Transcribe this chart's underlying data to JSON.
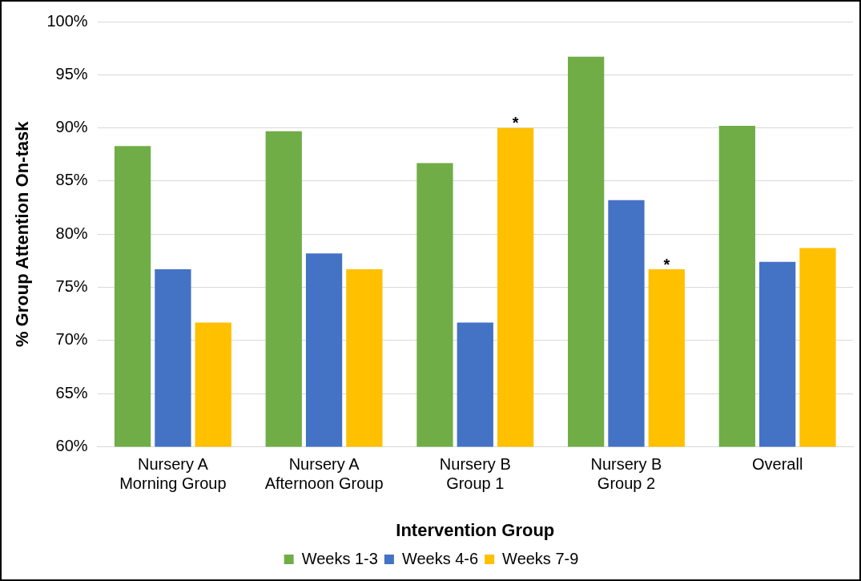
{
  "chart_data": {
    "type": "bar",
    "xlabel": "Intervention Group",
    "ylabel": "% Group Attention On-task",
    "categories": [
      "Nursery A\nMorning Group",
      "Nursery A\nAfternoon Group",
      "Nursery B\nGroup 1",
      "Nursery B\nGroup 2",
      "Overall"
    ],
    "series": [
      {
        "name": "Weeks 1-3",
        "color": "#70ad47",
        "values": [
          88.3,
          89.7,
          86.7,
          96.7,
          90.2
        ]
      },
      {
        "name": "Weeks 4-6",
        "color": "#4472c4",
        "values": [
          76.7,
          78.2,
          71.7,
          83.2,
          77.4
        ]
      },
      {
        "name": "Weeks 7-9",
        "color": "#ffc000",
        "values": [
          71.7,
          76.7,
          90.0,
          76.7,
          78.7
        ],
        "value_labels": [
          null,
          null,
          "*",
          "*",
          null
        ]
      }
    ],
    "ylim": [
      60,
      100
    ],
    "yticks": [
      {
        "value": 60,
        "label": "60%"
      },
      {
        "value": 65,
        "label": "65%"
      },
      {
        "value": 70,
        "label": "70%"
      },
      {
        "value": 75,
        "label": "75%"
      },
      {
        "value": 80,
        "label": "80%"
      },
      {
        "value": 85,
        "label": "85%"
      },
      {
        "value": 90,
        "label": "90%"
      },
      {
        "value": 95,
        "label": "95%"
      },
      {
        "value": 100,
        "label": "100%"
      }
    ],
    "grid": "y",
    "legend": "bottom"
  }
}
